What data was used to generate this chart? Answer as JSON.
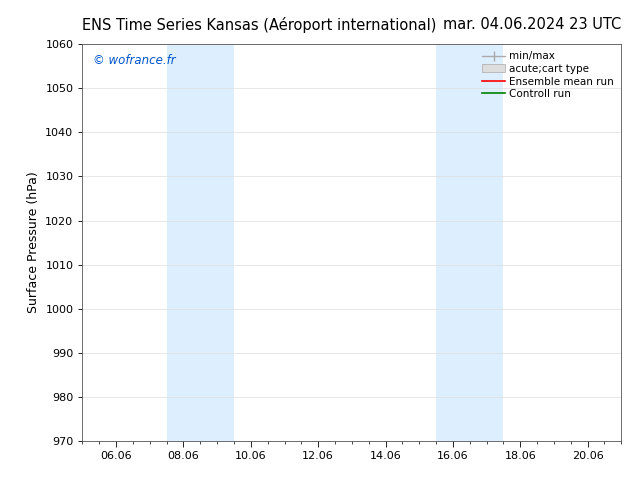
{
  "title_left": "ENS Time Series Kansas (Aéroport international)",
  "title_right": "mar. 04.06.2024 23 UTC",
  "ylabel": "Surface Pressure (hPa)",
  "ylim": [
    970,
    1060
  ],
  "yticks": [
    970,
    980,
    990,
    1000,
    1010,
    1020,
    1030,
    1040,
    1050,
    1060
  ],
  "xtick_labels": [
    "06.06",
    "08.06",
    "10.06",
    "12.06",
    "14.06",
    "16.06",
    "18.06",
    "20.06"
  ],
  "xtick_positions": [
    1,
    3,
    5,
    7,
    9,
    11,
    13,
    15
  ],
  "xlim": [
    0,
    16
  ],
  "background_color": "#ffffff",
  "plot_bg_color": "#ffffff",
  "watermark": "© wofrance.fr",
  "watermark_color": "#0055cc",
  "shaded_bands": [
    {
      "xstart": 2.5,
      "xend": 4.5
    },
    {
      "xstart": 10.5,
      "xend": 12.5
    }
  ],
  "band_color": "#ddeeff",
  "legend_entries": [
    {
      "label": "min/max",
      "type": "errbar",
      "color": "#aaaaaa",
      "lw": 1.0
    },
    {
      "label": "acute;cart type",
      "type": "patch",
      "color": "#dddddd",
      "edgecolor": "#aaaaaa"
    },
    {
      "label": "Ensemble mean run",
      "type": "line",
      "color": "#ff0000",
      "lw": 1.2
    },
    {
      "label": "Controll run",
      "type": "line",
      "color": "#008000",
      "lw": 1.2
    }
  ],
  "title_fontsize": 10.5,
  "tick_fontsize": 8,
  "ylabel_fontsize": 9,
  "watermark_fontsize": 8.5,
  "legend_fontsize": 7.5
}
